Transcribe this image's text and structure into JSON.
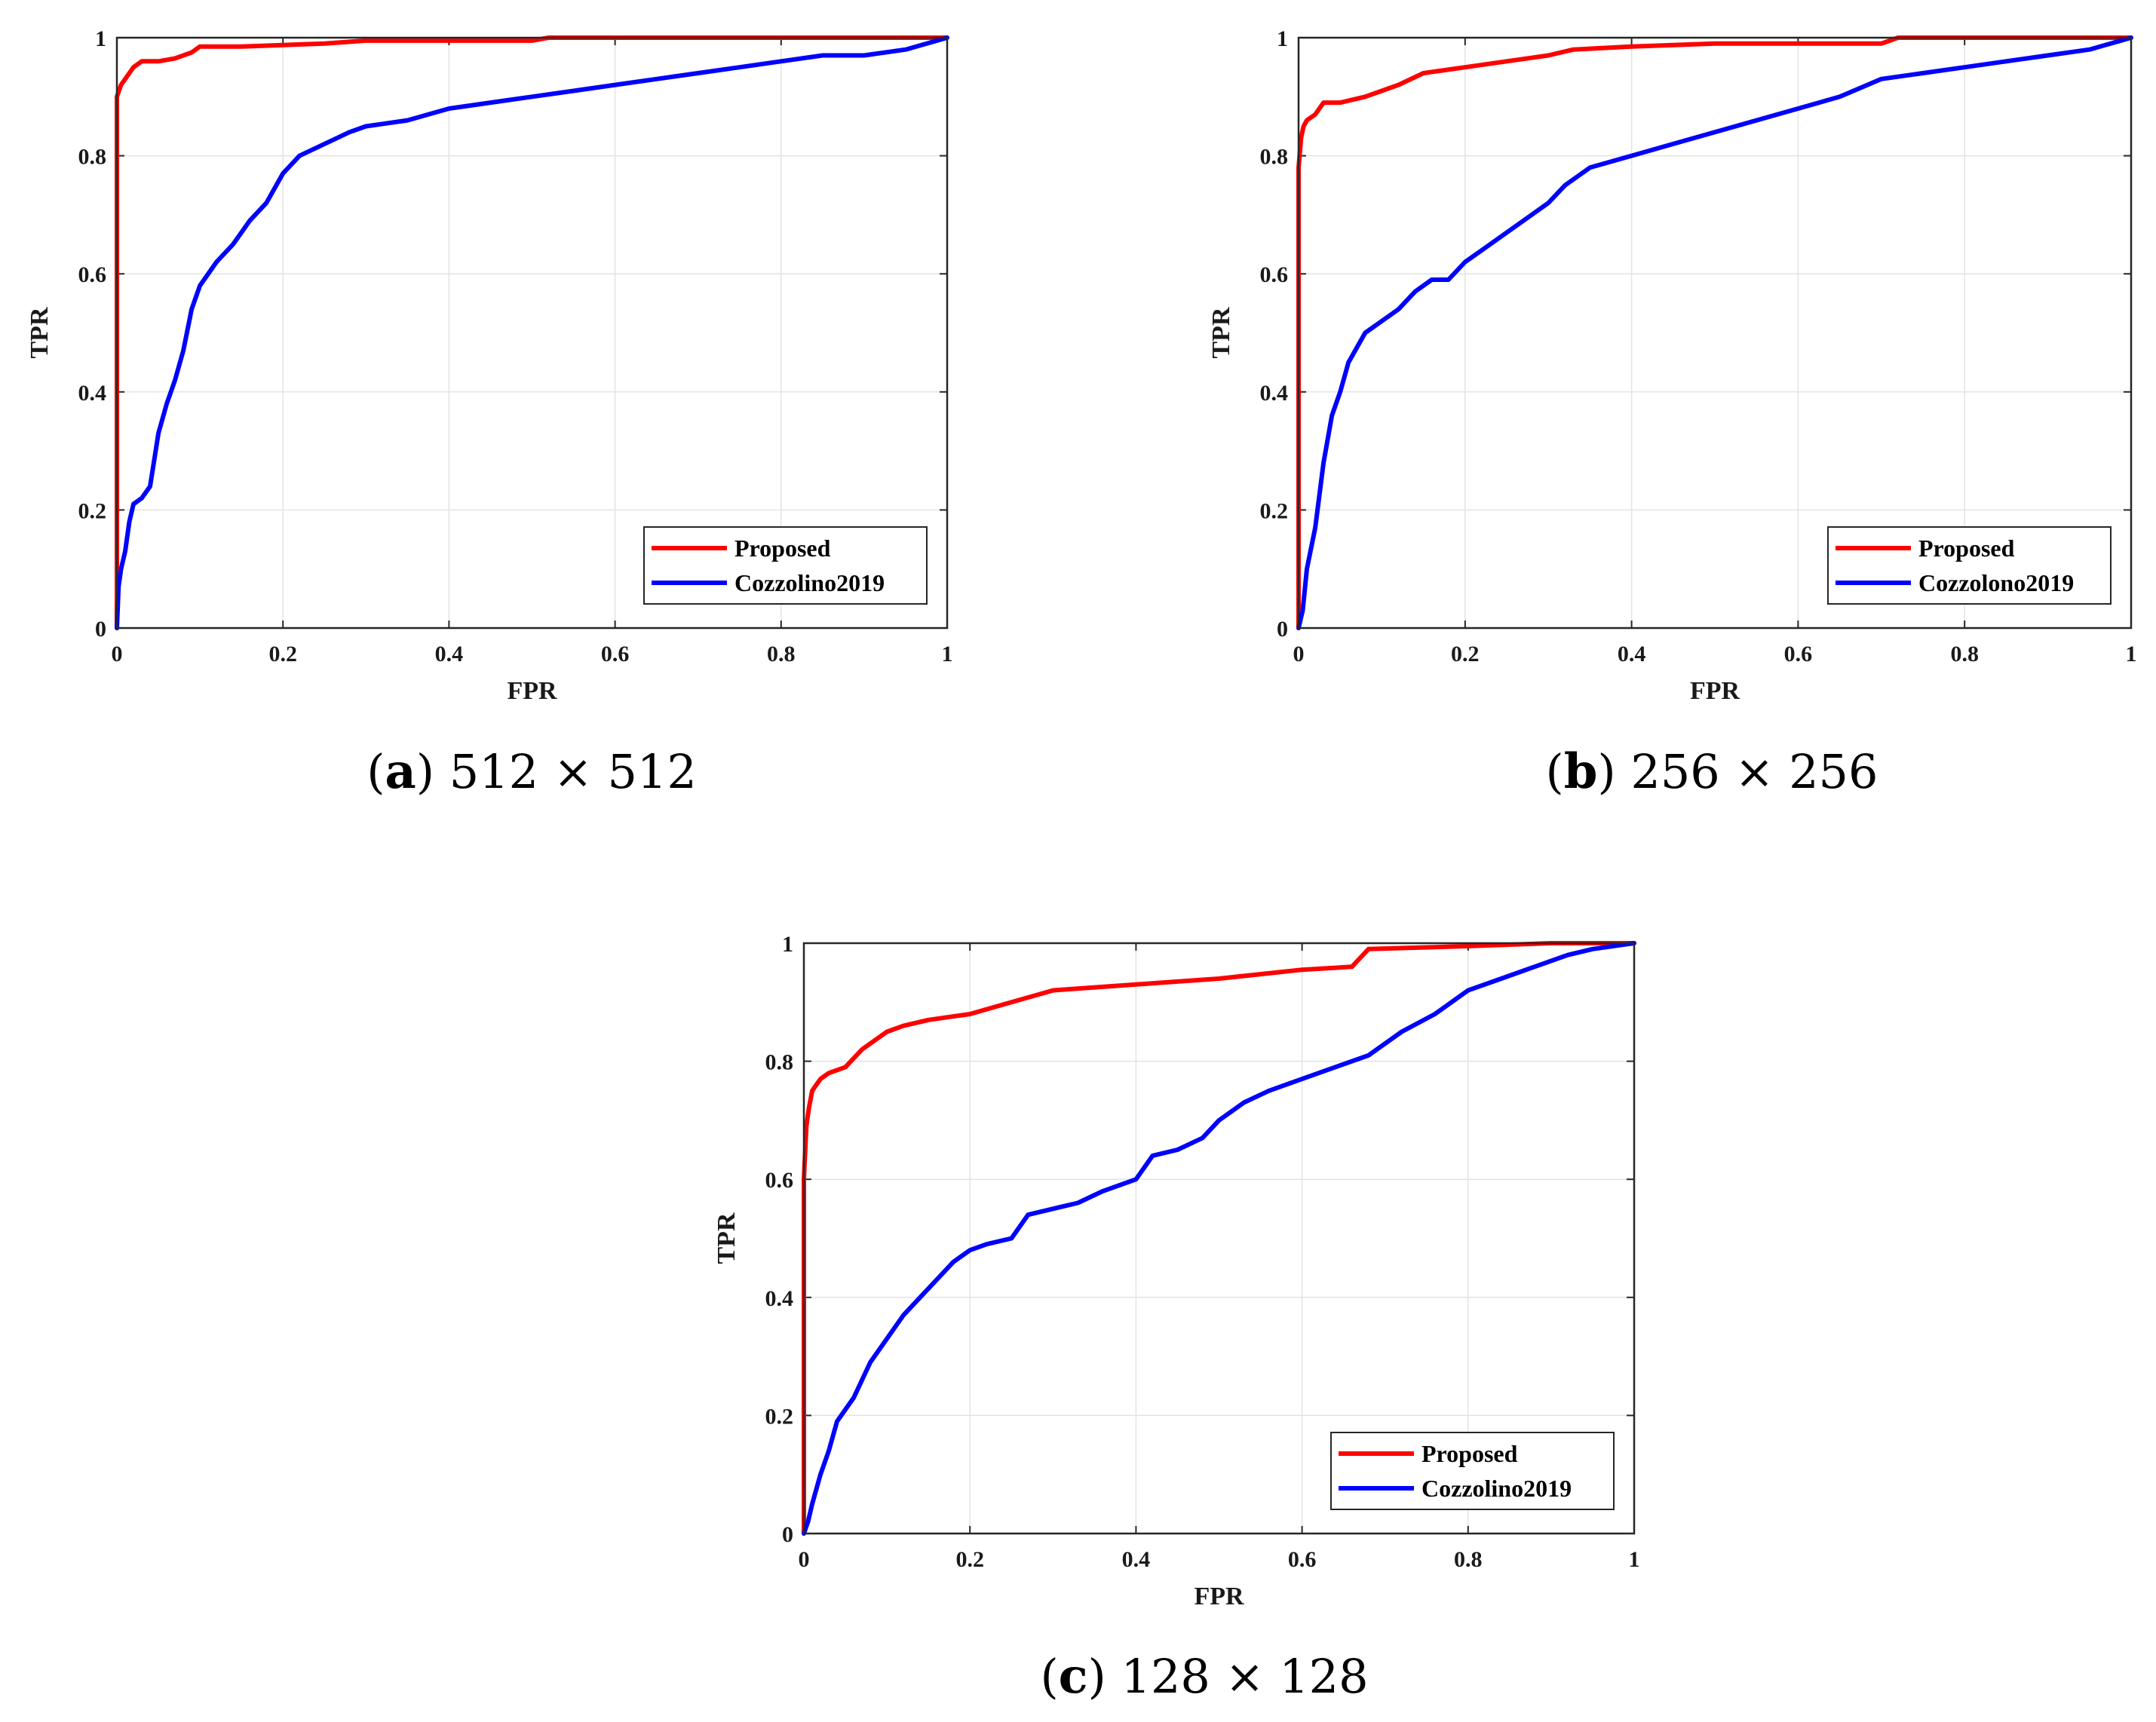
{
  "figure": {
    "panels": [
      {
        "letter": "a",
        "caption": "512 × 512"
      },
      {
        "letter": "b",
        "caption": "256 × 256"
      },
      {
        "letter": "c",
        "caption": "128 × 128"
      }
    ]
  },
  "colors": {
    "proposed": "#ff0000",
    "baseline": "#0000ff",
    "grid": "#e3e3e3",
    "axis": "#262626"
  },
  "chart_data": [
    {
      "type": "line",
      "panel": "a",
      "xlabel": "FPR",
      "ylabel": "TPR",
      "xlim": [
        0,
        1
      ],
      "ylim": [
        0,
        1
      ],
      "xticks": [
        0,
        0.2,
        0.4,
        0.6,
        0.8,
        1
      ],
      "yticks": [
        0,
        0.2,
        0.4,
        0.6,
        0.8,
        1
      ],
      "xtick_labels": [
        "0",
        "0.2",
        "0.4",
        "0.6",
        "0.8",
        "1"
      ],
      "ytick_labels": [
        "0",
        "0.2",
        "0.4",
        "0.6",
        "0.8",
        "1"
      ],
      "grid": true,
      "legend_position": "bottom-right",
      "series": [
        {
          "name": "Proposed",
          "color": "#ff0000",
          "x": [
            0,
            0,
            0.005,
            0.01,
            0.02,
            0.03,
            0.05,
            0.07,
            0.09,
            0.1,
            0.15,
            0.25,
            0.3,
            0.5,
            0.52,
            0.7,
            1
          ],
          "y": [
            0,
            0.9,
            0.92,
            0.93,
            0.95,
            0.96,
            0.96,
            0.965,
            0.975,
            0.985,
            0.985,
            0.99,
            0.995,
            0.995,
            1,
            1,
            1
          ]
        },
        {
          "name": "Cozzolino2019",
          "color": "#0000ff",
          "x": [
            0,
            0.002,
            0.005,
            0.01,
            0.015,
            0.02,
            0.03,
            0.04,
            0.05,
            0.06,
            0.07,
            0.08,
            0.09,
            0.1,
            0.12,
            0.14,
            0.16,
            0.18,
            0.2,
            0.22,
            0.25,
            0.28,
            0.3,
            0.35,
            0.4,
            0.45,
            0.5,
            0.55,
            0.6,
            0.65,
            0.7,
            0.75,
            0.8,
            0.85,
            0.9,
            0.95,
            1
          ],
          "y": [
            0,
            0.07,
            0.1,
            0.13,
            0.18,
            0.21,
            0.22,
            0.24,
            0.33,
            0.38,
            0.42,
            0.47,
            0.54,
            0.58,
            0.62,
            0.65,
            0.69,
            0.72,
            0.77,
            0.8,
            0.82,
            0.84,
            0.85,
            0.86,
            0.88,
            0.89,
            0.9,
            0.91,
            0.92,
            0.93,
            0.94,
            0.95,
            0.96,
            0.97,
            0.97,
            0.98,
            1
          ]
        }
      ]
    },
    {
      "type": "line",
      "panel": "b",
      "xlabel": "FPR",
      "ylabel": "TPR",
      "xlim": [
        0,
        1
      ],
      "ylim": [
        0,
        1
      ],
      "xticks": [
        0,
        0.2,
        0.4,
        0.6,
        0.8,
        1
      ],
      "yticks": [
        0,
        0.2,
        0.4,
        0.6,
        0.8,
        1
      ],
      "xtick_labels": [
        "0",
        "0.2",
        "0.4",
        "0.6",
        "0.8",
        "1"
      ],
      "ytick_labels": [
        "0",
        "0.2",
        "0.4",
        "0.6",
        "0.8",
        "1"
      ],
      "grid": true,
      "legend_position": "bottom-right",
      "series": [
        {
          "name": "Proposed",
          "color": "#ff0000",
          "x": [
            0,
            0,
            0.003,
            0.006,
            0.01,
            0.02,
            0.03,
            0.05,
            0.08,
            0.1,
            0.12,
            0.15,
            0.2,
            0.25,
            0.3,
            0.33,
            0.4,
            0.5,
            0.6,
            0.7,
            0.72,
            0.75,
            1
          ],
          "y": [
            0,
            0.78,
            0.83,
            0.85,
            0.86,
            0.87,
            0.89,
            0.89,
            0.9,
            0.91,
            0.92,
            0.94,
            0.95,
            0.96,
            0.97,
            0.98,
            0.985,
            0.99,
            0.99,
            0.99,
            1,
            1,
            1
          ]
        },
        {
          "name": "Cozzolono2019",
          "color": "#0000ff",
          "x": [
            0,
            0.005,
            0.01,
            0.02,
            0.03,
            0.04,
            0.05,
            0.06,
            0.08,
            0.1,
            0.12,
            0.14,
            0.16,
            0.18,
            0.2,
            0.22,
            0.25,
            0.28,
            0.3,
            0.32,
            0.35,
            0.4,
            0.45,
            0.5,
            0.55,
            0.6,
            0.65,
            0.7,
            0.75,
            0.8,
            0.85,
            0.9,
            0.95,
            1
          ],
          "y": [
            0,
            0.03,
            0.1,
            0.17,
            0.28,
            0.36,
            0.4,
            0.45,
            0.5,
            0.52,
            0.54,
            0.57,
            0.59,
            0.59,
            0.62,
            0.64,
            0.67,
            0.7,
            0.72,
            0.75,
            0.78,
            0.8,
            0.82,
            0.84,
            0.86,
            0.88,
            0.9,
            0.93,
            0.94,
            0.95,
            0.96,
            0.97,
            0.98,
            1
          ]
        }
      ]
    },
    {
      "type": "line",
      "panel": "c",
      "xlabel": "FPR",
      "ylabel": "TPR",
      "xlim": [
        0,
        1
      ],
      "ylim": [
        0,
        1
      ],
      "xticks": [
        0,
        0.2,
        0.4,
        0.6,
        0.8,
        1
      ],
      "yticks": [
        0,
        0.2,
        0.4,
        0.6,
        0.8,
        1
      ],
      "xtick_labels": [
        "0",
        "0.2",
        "0.4",
        "0.6",
        "0.8",
        "1"
      ],
      "ytick_labels": [
        "0",
        "0.2",
        "0.4",
        "0.6",
        "0.8",
        "1"
      ],
      "grid": true,
      "legend_position": "bottom-right",
      "series": [
        {
          "name": "Proposed",
          "color": "#ff0000",
          "x": [
            0,
            0,
            0.003,
            0.006,
            0.01,
            0.015,
            0.02,
            0.03,
            0.05,
            0.07,
            0.09,
            0.1,
            0.12,
            0.15,
            0.2,
            0.25,
            0.3,
            0.4,
            0.5,
            0.6,
            0.66,
            0.68,
            0.8,
            0.9,
            1
          ],
          "y": [
            0,
            0.6,
            0.69,
            0.72,
            0.75,
            0.76,
            0.77,
            0.78,
            0.79,
            0.82,
            0.84,
            0.85,
            0.86,
            0.87,
            0.88,
            0.9,
            0.92,
            0.93,
            0.94,
            0.955,
            0.96,
            0.99,
            0.995,
            1,
            1
          ]
        },
        {
          "name": "Cozzolino2019",
          "color": "#0000ff",
          "x": [
            0,
            0.005,
            0.01,
            0.02,
            0.03,
            0.04,
            0.05,
            0.06,
            0.07,
            0.08,
            0.1,
            0.12,
            0.14,
            0.16,
            0.18,
            0.2,
            0.22,
            0.25,
            0.27,
            0.3,
            0.33,
            0.36,
            0.4,
            0.42,
            0.45,
            0.48,
            0.5,
            0.53,
            0.56,
            0.6,
            0.64,
            0.68,
            0.72,
            0.76,
            0.8,
            0.84,
            0.88,
            0.92,
            0.95,
            1
          ],
          "y": [
            0,
            0.02,
            0.05,
            0.1,
            0.14,
            0.19,
            0.21,
            0.23,
            0.26,
            0.29,
            0.33,
            0.37,
            0.4,
            0.43,
            0.46,
            0.48,
            0.49,
            0.5,
            0.54,
            0.55,
            0.56,
            0.58,
            0.6,
            0.64,
            0.65,
            0.67,
            0.7,
            0.73,
            0.75,
            0.77,
            0.79,
            0.81,
            0.85,
            0.88,
            0.92,
            0.94,
            0.96,
            0.98,
            0.99,
            1
          ]
        }
      ]
    }
  ]
}
